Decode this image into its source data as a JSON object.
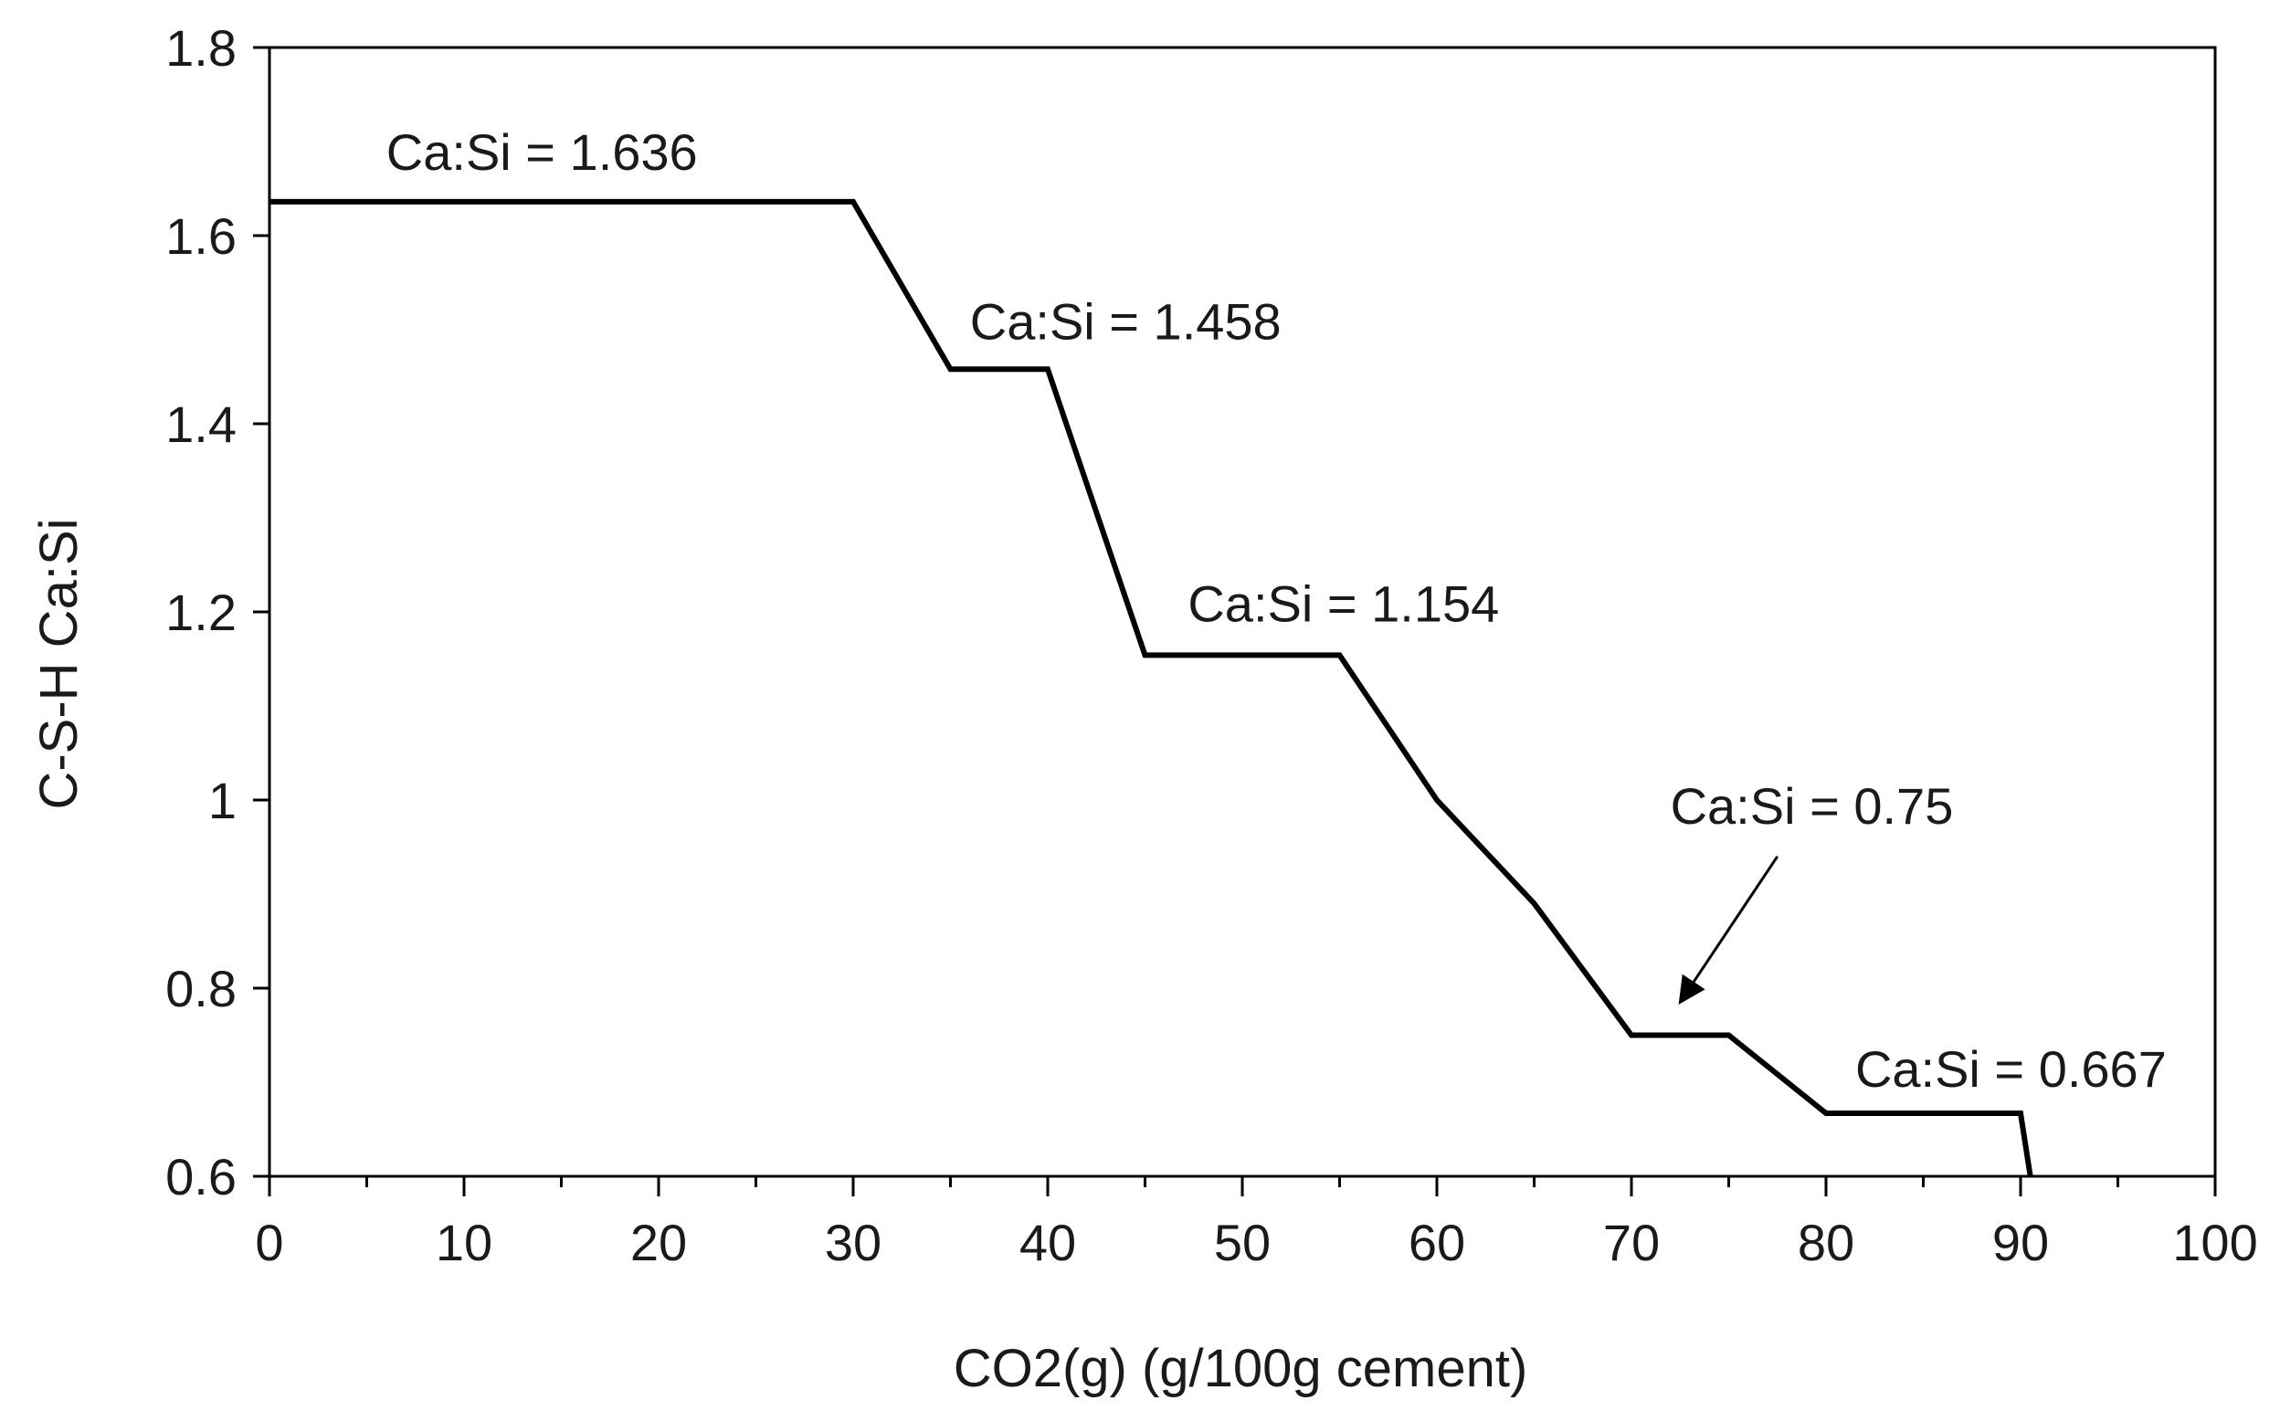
{
  "chart_data": {
    "type": "line",
    "xlabel": "CO2(g) (g/100g cement)",
    "ylabel": "C-S-H Ca:Si",
    "xlim": [
      0,
      100
    ],
    "ylim": [
      0.6,
      1.8
    ],
    "x_ticks": [
      0,
      10,
      20,
      30,
      40,
      50,
      60,
      70,
      80,
      90,
      100
    ],
    "x_tick_labels": [
      "0",
      "10",
      "20",
      "30",
      "40",
      "50",
      "60",
      "70",
      "80",
      "90",
      "100"
    ],
    "y_ticks": [
      0.6,
      0.8,
      1.0,
      1.2,
      1.4,
      1.6,
      1.8
    ],
    "y_tick_labels": [
      "0.6",
      "0.8",
      "1",
      "1.2",
      "1.4",
      "1.6",
      "1.8"
    ],
    "grid": false,
    "legend": "none",
    "line_color": "#000000",
    "series": [
      {
        "x": [
          0,
          30,
          35,
          40,
          45,
          55,
          60,
          65,
          70,
          75,
          80,
          90,
          90.5
        ],
        "y": [
          1.636,
          1.636,
          1.458,
          1.458,
          1.154,
          1.154,
          1.0,
          0.89,
          0.75,
          0.75,
          0.667,
          0.667,
          0.6
        ]
      }
    ],
    "annotations": [
      {
        "text": "Ca:Si = 1.636",
        "x": 6,
        "y": 1.67
      },
      {
        "text": "Ca:Si = 1.458",
        "x": 36,
        "y": 1.49
      },
      {
        "text": "Ca:Si = 1.154",
        "x": 47.2,
        "y": 1.19
      },
      {
        "text": "Ca:Si = 0.75",
        "x": 72,
        "y": 0.975
      },
      {
        "text": "Ca:Si = 0.667",
        "x": 81.5,
        "y": 0.695
      }
    ],
    "arrow": {
      "from": [
        77.5,
        0.94
      ],
      "to": [
        72.5,
        0.785
      ]
    }
  }
}
